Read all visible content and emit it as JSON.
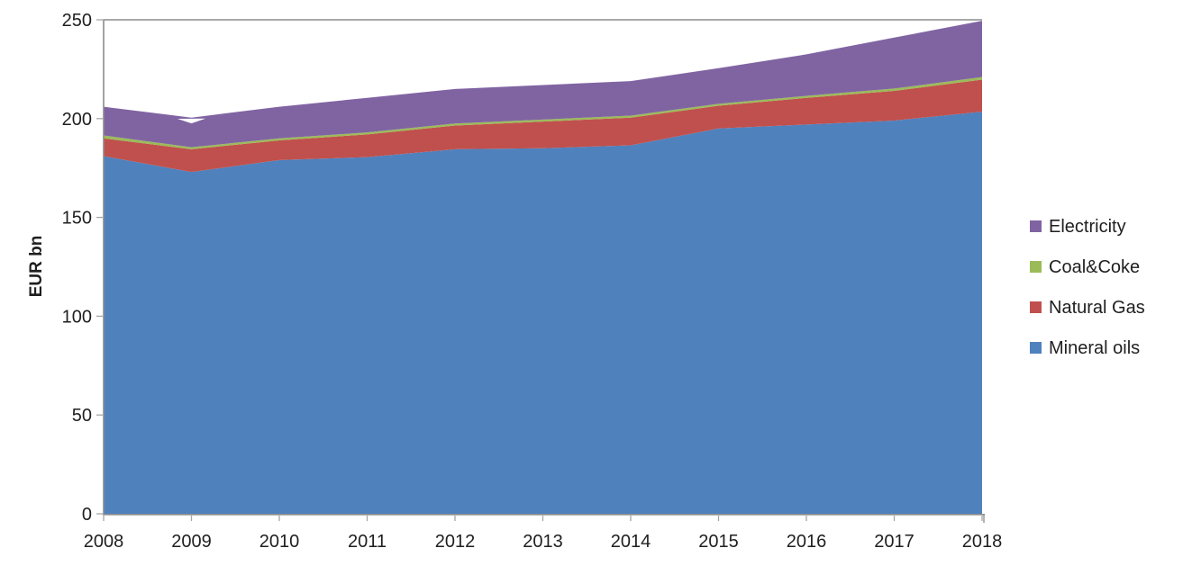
{
  "chart_data": {
    "type": "area",
    "stacked": true,
    "title": "",
    "xlabel": "",
    "ylabel": "EUR bn",
    "x": [
      2008,
      2009,
      2010,
      2011,
      2012,
      2013,
      2014,
      2015,
      2016,
      2017,
      2018
    ],
    "series": [
      {
        "name": "Mineral oils",
        "color": "#4F81BD",
        "values": [
          181,
          173,
          179,
          180.5,
          184.5,
          185,
          186.5,
          195,
          197,
          199,
          203.5
        ]
      },
      {
        "name": "Natural Gas",
        "color": "#C0504D",
        "values": [
          9,
          11.5,
          10,
          11.5,
          12,
          13.5,
          14,
          11.5,
          13.5,
          15,
          16.2
        ]
      },
      {
        "name": "Coal&Coke",
        "color": "#9BBB59",
        "values": [
          1.5,
          1,
          1,
          1,
          1,
          1,
          1,
          1,
          1,
          1.2,
          1.3
        ]
      },
      {
        "name": "Electricity",
        "color": "#8064A2",
        "values": [
          14.5,
          15,
          16,
          17.5,
          17.5,
          17.5,
          17.5,
          18,
          21,
          25.8,
          28.5
        ]
      }
    ],
    "stack_totals": [
      206,
      200.5,
      206,
      210.5,
      215,
      217,
      219,
      225.5,
      232.5,
      241,
      249.5
    ],
    "ylim": [
      0,
      250
    ],
    "y_ticks": [
      0,
      50,
      100,
      150,
      200,
      250
    ],
    "grid": false,
    "legend_position": "right",
    "legend_order": [
      "Electricity",
      "Coal&Coke",
      "Natural Gas",
      "Mineral oils"
    ],
    "annotations": [
      {
        "type": "white-notch",
        "note": "small white wedge artifact just below the stack top at 2009, near the 200 level",
        "points_year_value": [
          [
            2008.84,
            199.9
          ],
          [
            2009.16,
            200.05
          ],
          [
            2009.0,
            197.6
          ]
        ]
      }
    ]
  },
  "axes": {
    "y_label": "EUR bn",
    "y_tick_labels": [
      "0",
      "50",
      "100",
      "150",
      "200",
      "250"
    ],
    "x_tick_labels": [
      "2008",
      "2009",
      "2010",
      "2011",
      "2012",
      "2013",
      "2014",
      "2015",
      "2016",
      "2017",
      "2018"
    ]
  },
  "legend": {
    "items": [
      {
        "label": "Electricity",
        "color": "#8064A2"
      },
      {
        "label": "Coal&Coke",
        "color": "#9BBB59"
      },
      {
        "label": "Natural Gas",
        "color": "#C0504D"
      },
      {
        "label": "Mineral oils",
        "color": "#4F81BD"
      }
    ]
  },
  "colors": {
    "background": "#FFFFFF",
    "axis_line": "#8C8C8C",
    "tick_mark": "#A6A6A6",
    "label_text": "#1F1F1F"
  }
}
